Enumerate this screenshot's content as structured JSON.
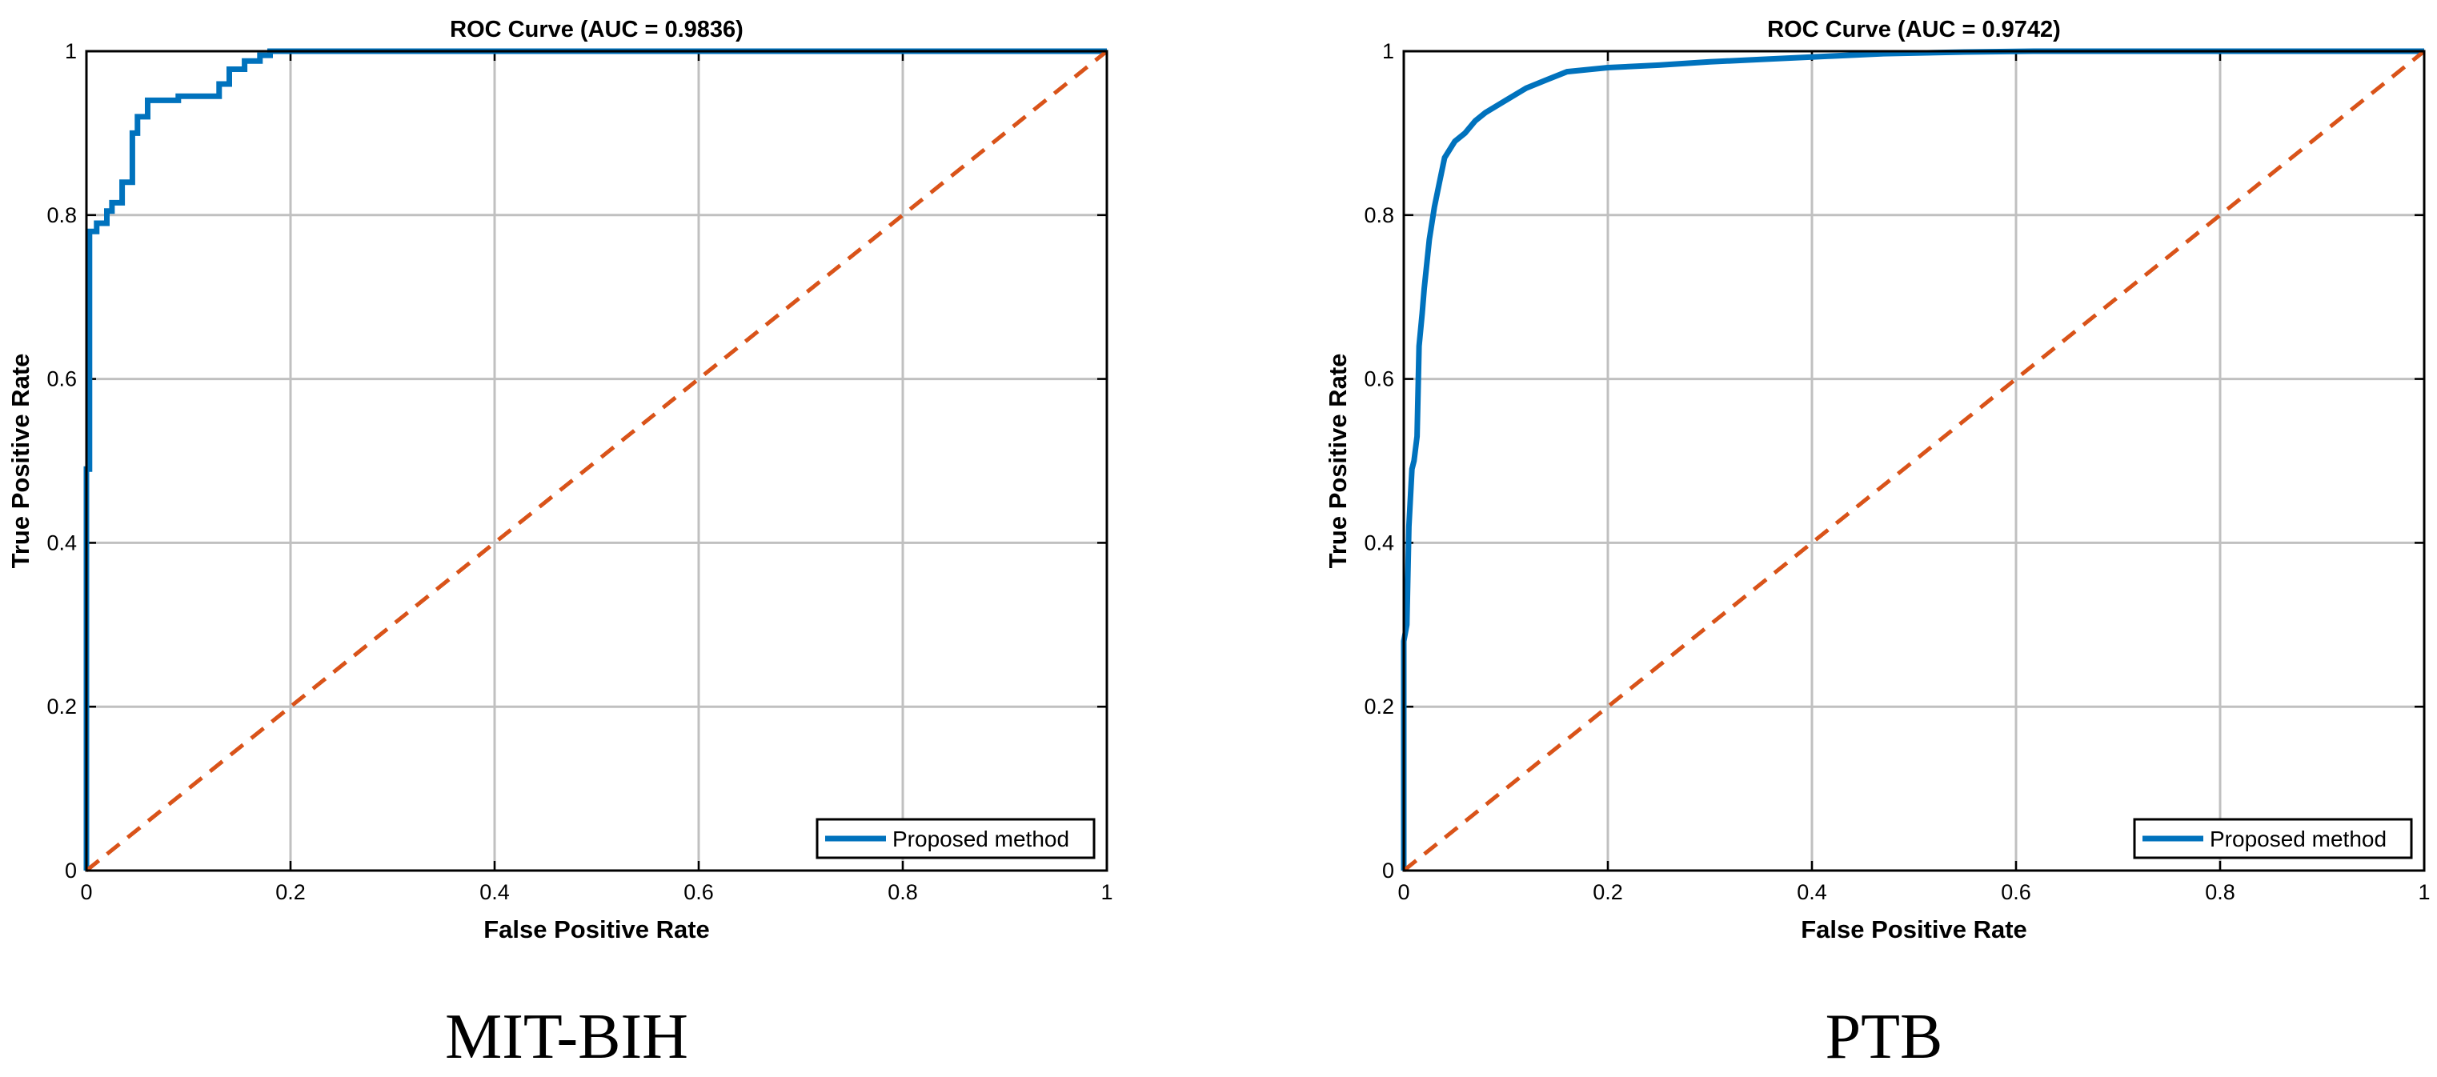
{
  "chart_data": [
    {
      "type": "line",
      "title": "ROC Curve (AUC = 0.9836)",
      "xlabel": "False Positive Rate",
      "ylabel": "True Positive Rate",
      "xlim": [
        0,
        1
      ],
      "ylim": [
        0,
        1
      ],
      "xticks": [
        "0",
        "0.2",
        "0.4",
        "0.6",
        "0.8",
        "1"
      ],
      "yticks": [
        "0",
        "0.2",
        "0.4",
        "0.6",
        "0.8",
        "1"
      ],
      "grid": true,
      "legend_position": "bottom-right",
      "caption": "MIT-BIH",
      "series": [
        {
          "name": "Proposed method",
          "color": "#0072BD",
          "style": "solid",
          "x": [
            0,
            0,
            0.003,
            0.003,
            0.01,
            0.01,
            0.02,
            0.02,
            0.025,
            0.025,
            0.035,
            0.035,
            0.045,
            0.045,
            0.05,
            0.05,
            0.06,
            0.06,
            0.09,
            0.09,
            0.13,
            0.13,
            0.14,
            0.14,
            0.155,
            0.155,
            0.17,
            0.17,
            0.18,
            0.18,
            1
          ],
          "y": [
            0,
            0.49,
            0.49,
            0.78,
            0.78,
            0.79,
            0.79,
            0.805,
            0.805,
            0.815,
            0.815,
            0.84,
            0.84,
            0.9,
            0.9,
            0.92,
            0.92,
            0.94,
            0.94,
            0.945,
            0.945,
            0.96,
            0.96,
            0.978,
            0.978,
            0.988,
            0.988,
            0.995,
            0.995,
            1,
            1
          ]
        },
        {
          "color": "#D95319",
          "style": "dashed",
          "x": [
            0,
            1
          ],
          "y": [
            0,
            1
          ]
        }
      ]
    },
    {
      "type": "line",
      "title": "ROC Curve (AUC = 0.9742)",
      "xlabel": "False Positive Rate",
      "ylabel": "True Positive Rate",
      "xlim": [
        0,
        1
      ],
      "ylim": [
        0,
        1
      ],
      "xticks": [
        "0",
        "0.2",
        "0.4",
        "0.6",
        "0.8",
        "1"
      ],
      "yticks": [
        "0",
        "0.2",
        "0.4",
        "0.6",
        "0.8",
        "1"
      ],
      "grid": true,
      "legend_position": "bottom-right",
      "caption": "PTB",
      "series": [
        {
          "name": "Proposed method",
          "color": "#0072BD",
          "style": "solid",
          "x": [
            0,
            0,
            0.003,
            0.005,
            0.008,
            0.01,
            0.013,
            0.015,
            0.018,
            0.02,
            0.025,
            0.03,
            0.035,
            0.04,
            0.045,
            0.05,
            0.06,
            0.07,
            0.08,
            0.1,
            0.12,
            0.14,
            0.16,
            0.2,
            0.25,
            0.3,
            0.35,
            0.4,
            0.47,
            0.55,
            0.62,
            1
          ],
          "y": [
            0,
            0.28,
            0.3,
            0.42,
            0.49,
            0.5,
            0.53,
            0.64,
            0.68,
            0.71,
            0.77,
            0.81,
            0.84,
            0.87,
            0.88,
            0.89,
            0.9,
            0.915,
            0.925,
            0.94,
            0.955,
            0.965,
            0.975,
            0.98,
            0.983,
            0.987,
            0.99,
            0.993,
            0.997,
            0.999,
            1,
            1
          ]
        },
        {
          "color": "#D95319",
          "style": "dashed",
          "x": [
            0,
            1
          ],
          "y": [
            0,
            1
          ]
        }
      ]
    }
  ]
}
